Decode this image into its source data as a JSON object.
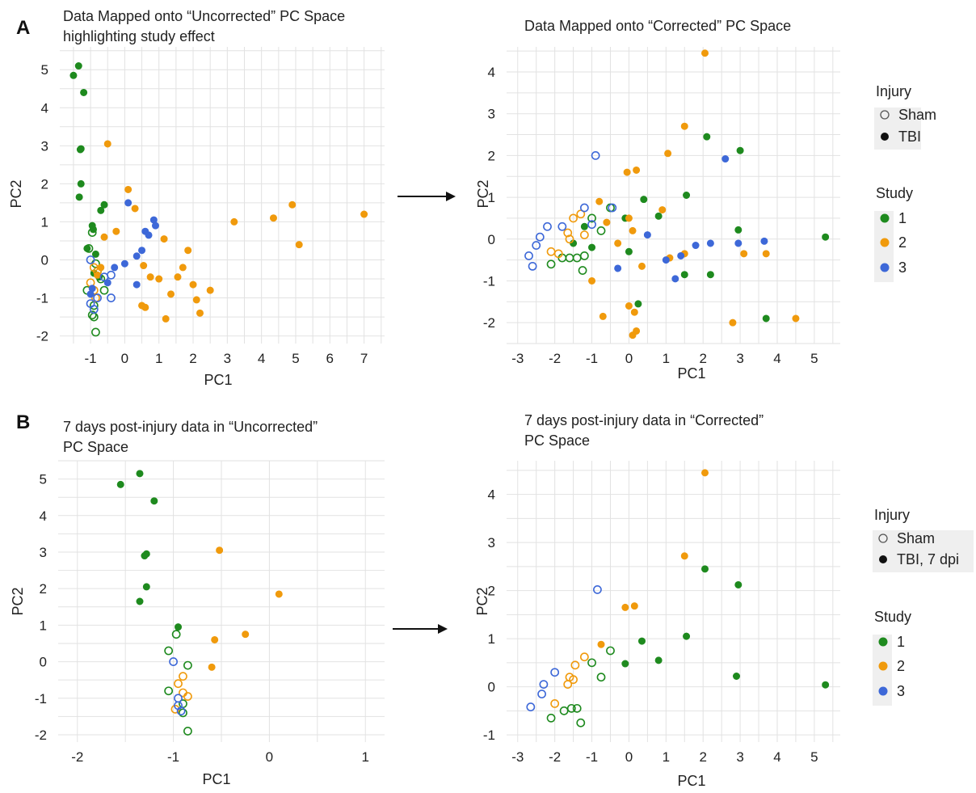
{
  "panels": {
    "a": {
      "label": "A"
    },
    "b": {
      "label": "B"
    }
  },
  "colors": {
    "study_1": "#1e8a1e",
    "study_2": "#f09a0c",
    "study_3": "#3d68d8",
    "grid": "#e2e2e2",
    "arrow": "#111111"
  },
  "chart_data": [
    {
      "id": "a-left",
      "type": "scatter",
      "title": [
        "Data Mapped onto “Uncorrected” PC Space",
        "highlighting study effect"
      ],
      "xlabel": "PC1",
      "ylabel": "PC2",
      "xlim": [
        -1.9,
        7.6
      ],
      "ylim": [
        -2.2,
        5.6
      ],
      "xticks": [
        -1,
        0,
        1,
        2,
        3,
        4,
        5,
        6,
        7
      ],
      "yticks": [
        -2,
        -1,
        0,
        1,
        2,
        3,
        4,
        5
      ],
      "grid": true,
      "points": [
        [
          -1.5,
          4.85,
          1,
          1
        ],
        [
          -1.35,
          5.1,
          1,
          1
        ],
        [
          -1.2,
          4.4,
          1,
          1
        ],
        [
          -1.3,
          2.9,
          1,
          1
        ],
        [
          -1.28,
          2.92,
          1,
          1
        ],
        [
          -1.28,
          2.0,
          1,
          1
        ],
        [
          -1.33,
          1.65,
          1,
          1
        ],
        [
          -0.6,
          1.45,
          1,
          1
        ],
        [
          -0.95,
          0.9,
          1,
          1
        ],
        [
          -0.92,
          0.8,
          1,
          1
        ],
        [
          -0.7,
          1.3,
          1,
          1
        ],
        [
          -1.1,
          0.3,
          1,
          1
        ],
        [
          -0.85,
          0.15,
          1,
          1
        ],
        [
          -0.9,
          -0.35,
          1,
          1
        ],
        [
          -0.75,
          -0.45,
          1,
          1
        ],
        [
          -0.95,
          0.72,
          1,
          0
        ],
        [
          -1.05,
          0.3,
          1,
          0
        ],
        [
          -0.85,
          -0.1,
          1,
          0
        ],
        [
          -0.8,
          -0.3,
          1,
          0
        ],
        [
          -1.1,
          -0.8,
          1,
          0
        ],
        [
          -0.9,
          -1.2,
          1,
          0
        ],
        [
          -0.95,
          -1.45,
          1,
          0
        ],
        [
          -0.9,
          -1.5,
          1,
          0
        ],
        [
          -0.85,
          -1.9,
          1,
          0
        ],
        [
          -0.7,
          -0.5,
          1,
          0
        ],
        [
          -0.6,
          -0.8,
          1,
          0
        ],
        [
          -0.5,
          3.05,
          2,
          1
        ],
        [
          0.1,
          1.85,
          2,
          1
        ],
        [
          0.3,
          1.35,
          2,
          1
        ],
        [
          -0.6,
          0.6,
          2,
          1
        ],
        [
          -0.25,
          0.75,
          2,
          1
        ],
        [
          1.15,
          0.55,
          2,
          1
        ],
        [
          0.55,
          -0.15,
          2,
          1
        ],
        [
          0.75,
          -0.45,
          2,
          1
        ],
        [
          1.0,
          -0.5,
          2,
          1
        ],
        [
          1.35,
          -0.9,
          2,
          1
        ],
        [
          1.55,
          -0.45,
          2,
          1
        ],
        [
          1.7,
          -0.2,
          2,
          1
        ],
        [
          1.85,
          0.25,
          2,
          1
        ],
        [
          2.0,
          -0.65,
          2,
          1
        ],
        [
          2.1,
          -1.05,
          2,
          1
        ],
        [
          2.2,
          -1.4,
          2,
          1
        ],
        [
          2.5,
          -0.8,
          2,
          1
        ],
        [
          0.6,
          -1.25,
          2,
          1
        ],
        [
          0.5,
          -1.2,
          2,
          1
        ],
        [
          1.2,
          -1.55,
          2,
          1
        ],
        [
          -0.7,
          -0.2,
          2,
          1
        ],
        [
          -0.8,
          -0.4,
          2,
          1
        ],
        [
          3.2,
          1.0,
          2,
          1
        ],
        [
          4.35,
          1.1,
          2,
          1
        ],
        [
          4.9,
          1.45,
          2,
          1
        ],
        [
          5.1,
          0.4,
          2,
          1
        ],
        [
          7.0,
          1.2,
          2,
          1
        ],
        [
          -1.0,
          -0.6,
          2,
          0
        ],
        [
          -0.9,
          -0.2,
          2,
          0
        ],
        [
          -0.8,
          -0.3,
          2,
          0
        ],
        [
          -0.9,
          -0.8,
          2,
          0
        ],
        [
          -0.85,
          -1.0,
          2,
          0
        ],
        [
          0.1,
          1.5,
          3,
          1
        ],
        [
          0.85,
          1.05,
          3,
          1
        ],
        [
          0.9,
          0.9,
          3,
          1
        ],
        [
          0.6,
          0.75,
          3,
          1
        ],
        [
          0.5,
          0.25,
          3,
          1
        ],
        [
          0.35,
          0.1,
          3,
          1
        ],
        [
          0.0,
          -0.1,
          3,
          1
        ],
        [
          -0.3,
          -0.2,
          3,
          1
        ],
        [
          -0.5,
          -0.6,
          3,
          1
        ],
        [
          -0.95,
          -0.75,
          3,
          1
        ],
        [
          -1.0,
          -0.9,
          3,
          1
        ],
        [
          0.35,
          -0.65,
          3,
          1
        ],
        [
          0.7,
          0.65,
          3,
          1
        ],
        [
          -1.0,
          0.0,
          3,
          0
        ],
        [
          -0.6,
          -0.45,
          3,
          0
        ],
        [
          -0.4,
          -0.4,
          3,
          0
        ],
        [
          -0.4,
          -1.0,
          3,
          0
        ],
        [
          -0.9,
          -1.3,
          3,
          0
        ],
        [
          -0.8,
          -1.0,
          3,
          0
        ],
        [
          -1.0,
          -1.15,
          3,
          0
        ]
      ]
    },
    {
      "id": "a-right",
      "type": "scatter",
      "title": [
        "Data Mapped onto “Corrected” PC Space"
      ],
      "xlabel": "PC1",
      "ylabel": "PC2",
      "xlim": [
        -3.3,
        5.7
      ],
      "ylim": [
        -2.5,
        4.6
      ],
      "xticks": [
        -3,
        -2,
        -1,
        0,
        1,
        2,
        3,
        4,
        5
      ],
      "yticks": [
        -2,
        -1,
        0,
        1,
        2,
        3,
        4
      ],
      "grid": true,
      "legend": {
        "position": "right",
        "injury_title": "Injury",
        "injury_items": [
          "Sham",
          "TBI"
        ],
        "study_title": "Study",
        "study_items": [
          "1",
          "2",
          "3"
        ]
      },
      "points": [
        [
          2.1,
          2.45,
          1,
          1
        ],
        [
          3.0,
          2.12,
          1,
          1
        ],
        [
          1.55,
          1.05,
          1,
          1
        ],
        [
          0.4,
          0.95,
          1,
          1
        ],
        [
          -0.1,
          0.5,
          1,
          1
        ],
        [
          0.8,
          0.55,
          1,
          1
        ],
        [
          1.5,
          -0.85,
          1,
          1
        ],
        [
          2.2,
          -0.85,
          1,
          1
        ],
        [
          2.95,
          0.22,
          1,
          1
        ],
        [
          3.7,
          -1.9,
          1,
          1
        ],
        [
          5.3,
          0.05,
          1,
          1
        ],
        [
          0.0,
          -0.3,
          1,
          1
        ],
        [
          0.25,
          -1.55,
          1,
          1
        ],
        [
          -1.2,
          0.3,
          1,
          1
        ],
        [
          -1.0,
          -0.2,
          1,
          1
        ],
        [
          -1.5,
          -0.1,
          1,
          1
        ],
        [
          -2.1,
          -0.6,
          1,
          0
        ],
        [
          -1.8,
          -0.45,
          1,
          0
        ],
        [
          -1.6,
          -0.45,
          1,
          0
        ],
        [
          -1.4,
          -0.45,
          1,
          0
        ],
        [
          -1.25,
          -0.75,
          1,
          0
        ],
        [
          -1.0,
          0.5,
          1,
          0
        ],
        [
          -0.75,
          0.2,
          1,
          0
        ],
        [
          -0.5,
          0.75,
          1,
          0
        ],
        [
          -1.2,
          -0.4,
          1,
          0
        ],
        [
          2.05,
          4.45,
          2,
          1
        ],
        [
          1.5,
          2.7,
          2,
          1
        ],
        [
          1.05,
          2.05,
          2,
          1
        ],
        [
          0.2,
          1.65,
          2,
          1
        ],
        [
          -0.05,
          1.6,
          2,
          1
        ],
        [
          -0.8,
          0.9,
          2,
          1
        ],
        [
          -0.6,
          0.4,
          2,
          1
        ],
        [
          0.1,
          0.2,
          2,
          1
        ],
        [
          0.35,
          -0.65,
          2,
          1
        ],
        [
          0.9,
          0.7,
          2,
          1
        ],
        [
          1.1,
          -0.45,
          2,
          1
        ],
        [
          1.5,
          -0.35,
          2,
          1
        ],
        [
          0.0,
          -1.6,
          2,
          1
        ],
        [
          0.15,
          -1.75,
          2,
          1
        ],
        [
          0.1,
          -2.3,
          2,
          1
        ],
        [
          0.2,
          -2.2,
          2,
          1
        ],
        [
          -0.7,
          -1.85,
          2,
          1
        ],
        [
          -1.0,
          -1.0,
          2,
          1
        ],
        [
          2.8,
          -2.0,
          2,
          1
        ],
        [
          4.5,
          -1.9,
          2,
          1
        ],
        [
          3.1,
          -0.35,
          2,
          1
        ],
        [
          3.7,
          -0.35,
          2,
          1
        ],
        [
          -0.3,
          -0.1,
          2,
          1
        ],
        [
          0.0,
          0.5,
          2,
          1
        ],
        [
          -2.1,
          -0.3,
          2,
          0
        ],
        [
          -1.9,
          -0.35,
          2,
          0
        ],
        [
          -1.65,
          0.15,
          2,
          0
        ],
        [
          -1.5,
          0.5,
          2,
          0
        ],
        [
          -1.3,
          0.6,
          2,
          0
        ],
        [
          -1.2,
          0.1,
          2,
          0
        ],
        [
          -1.6,
          0.0,
          2,
          0
        ],
        [
          2.6,
          1.92,
          3,
          1
        ],
        [
          0.5,
          0.1,
          3,
          1
        ],
        [
          1.0,
          -0.5,
          3,
          1
        ],
        [
          1.4,
          -0.4,
          3,
          1
        ],
        [
          1.8,
          -0.15,
          3,
          1
        ],
        [
          2.2,
          -0.1,
          3,
          1
        ],
        [
          2.95,
          -0.1,
          3,
          1
        ],
        [
          3.65,
          -0.05,
          3,
          1
        ],
        [
          1.25,
          -0.95,
          3,
          1
        ],
        [
          -0.3,
          -0.7,
          3,
          1
        ],
        [
          -0.9,
          2.0,
          3,
          0
        ],
        [
          -1.0,
          0.35,
          3,
          0
        ],
        [
          -1.2,
          0.75,
          3,
          0
        ],
        [
          -2.2,
          0.3,
          3,
          0
        ],
        [
          -2.4,
          0.05,
          3,
          0
        ],
        [
          -2.5,
          -0.15,
          3,
          0
        ],
        [
          -2.7,
          -0.4,
          3,
          0
        ],
        [
          -2.6,
          -0.65,
          3,
          0
        ],
        [
          -1.8,
          0.3,
          3,
          0
        ],
        [
          -0.45,
          0.75,
          3,
          0
        ]
      ]
    },
    {
      "id": "b-left",
      "type": "scatter",
      "title": [
        "7 days post-injury data in “Uncorrected”",
        "PC Space"
      ],
      "xlabel": "PC1",
      "ylabel": "PC2",
      "xlim": [
        -2.2,
        1.2
      ],
      "ylim": [
        -2.2,
        5.5
      ],
      "xticks": [
        -2,
        -1,
        0,
        1
      ],
      "yticks": [
        -2,
        -1,
        0,
        1,
        2,
        3,
        4,
        5
      ],
      "grid": true,
      "points": [
        [
          -1.35,
          5.15,
          1,
          1
        ],
        [
          -1.55,
          4.85,
          1,
          1
        ],
        [
          -1.2,
          4.4,
          1,
          1
        ],
        [
          -1.28,
          2.95,
          1,
          1
        ],
        [
          -1.3,
          2.9,
          1,
          1
        ],
        [
          -1.28,
          2.05,
          1,
          1
        ],
        [
          -1.35,
          1.65,
          1,
          1
        ],
        [
          -0.95,
          0.95,
          1,
          1
        ],
        [
          -0.97,
          0.75,
          1,
          0
        ],
        [
          -1.05,
          0.3,
          1,
          0
        ],
        [
          -0.85,
          -0.1,
          1,
          0
        ],
        [
          -1.05,
          -0.8,
          1,
          0
        ],
        [
          -0.9,
          -1.15,
          1,
          0
        ],
        [
          -0.9,
          -1.4,
          1,
          0
        ],
        [
          -0.85,
          -1.9,
          1,
          0
        ],
        [
          -0.52,
          3.05,
          2,
          1
        ],
        [
          0.1,
          1.85,
          2,
          1
        ],
        [
          -0.25,
          0.75,
          2,
          1
        ],
        [
          -0.57,
          0.6,
          2,
          1
        ],
        [
          -0.6,
          -0.15,
          2,
          1
        ],
        [
          -0.9,
          -0.4,
          2,
          0
        ],
        [
          -0.95,
          -0.6,
          2,
          0
        ],
        [
          -0.9,
          -0.85,
          2,
          0
        ],
        [
          -0.85,
          -0.95,
          2,
          0
        ],
        [
          -0.98,
          -1.3,
          2,
          0
        ],
        [
          -1.0,
          0.0,
          3,
          0
        ],
        [
          -0.95,
          -1.0,
          3,
          0
        ],
        [
          -0.95,
          -1.2,
          3,
          0
        ],
        [
          -0.92,
          -1.35,
          3,
          0
        ]
      ]
    },
    {
      "id": "b-right",
      "type": "scatter",
      "title": [
        "7 days post-injury data in “Corrected”",
        "PC Space"
      ],
      "xlabel": "PC1",
      "ylabel": "PC2",
      "xlim": [
        -3.3,
        5.7
      ],
      "ylim": [
        -1.15,
        4.7
      ],
      "xticks": [
        -3,
        -2,
        -1,
        0,
        1,
        2,
        3,
        4,
        5
      ],
      "yticks": [
        -1,
        0,
        1,
        2,
        3,
        4
      ],
      "grid": true,
      "legend": {
        "position": "right",
        "injury_title": "Injury",
        "injury_items": [
          "Sham",
          "TBI, 7 dpi"
        ],
        "study_title": "Study",
        "study_items": [
          "1",
          "2",
          "3"
        ]
      },
      "points": [
        [
          2.05,
          2.45,
          1,
          1
        ],
        [
          2.95,
          2.12,
          1,
          1
        ],
        [
          1.55,
          1.05,
          1,
          1
        ],
        [
          0.35,
          0.95,
          1,
          1
        ],
        [
          -0.1,
          0.48,
          1,
          1
        ],
        [
          0.8,
          0.55,
          1,
          1
        ],
        [
          2.9,
          0.22,
          1,
          1
        ],
        [
          5.3,
          0.04,
          1,
          1
        ],
        [
          -0.5,
          0.75,
          1,
          0
        ],
        [
          -1.0,
          0.5,
          1,
          0
        ],
        [
          -0.75,
          0.2,
          1,
          0
        ],
        [
          -1.3,
          -0.75,
          1,
          0
        ],
        [
          -1.4,
          -0.45,
          1,
          0
        ],
        [
          -1.55,
          -0.45,
          1,
          0
        ],
        [
          -1.75,
          -0.5,
          1,
          0
        ],
        [
          -2.1,
          -0.65,
          1,
          0
        ],
        [
          2.05,
          4.45,
          2,
          1
        ],
        [
          1.5,
          2.72,
          2,
          1
        ],
        [
          0.15,
          1.68,
          2,
          1
        ],
        [
          -0.1,
          1.65,
          2,
          1
        ],
        [
          -0.75,
          0.88,
          2,
          1
        ],
        [
          -1.2,
          0.62,
          2,
          0
        ],
        [
          -1.45,
          0.45,
          2,
          0
        ],
        [
          -1.6,
          0.2,
          2,
          0
        ],
        [
          -1.65,
          0.05,
          2,
          0
        ],
        [
          -1.5,
          0.15,
          2,
          0
        ],
        [
          -2.0,
          -0.35,
          2,
          0
        ],
        [
          -0.85,
          2.02,
          3,
          0
        ],
        [
          -2.0,
          0.3,
          3,
          0
        ],
        [
          -2.3,
          0.05,
          3,
          0
        ],
        [
          -2.35,
          -0.15,
          3,
          0
        ],
        [
          -2.65,
          -0.42,
          3,
          0
        ]
      ]
    }
  ]
}
